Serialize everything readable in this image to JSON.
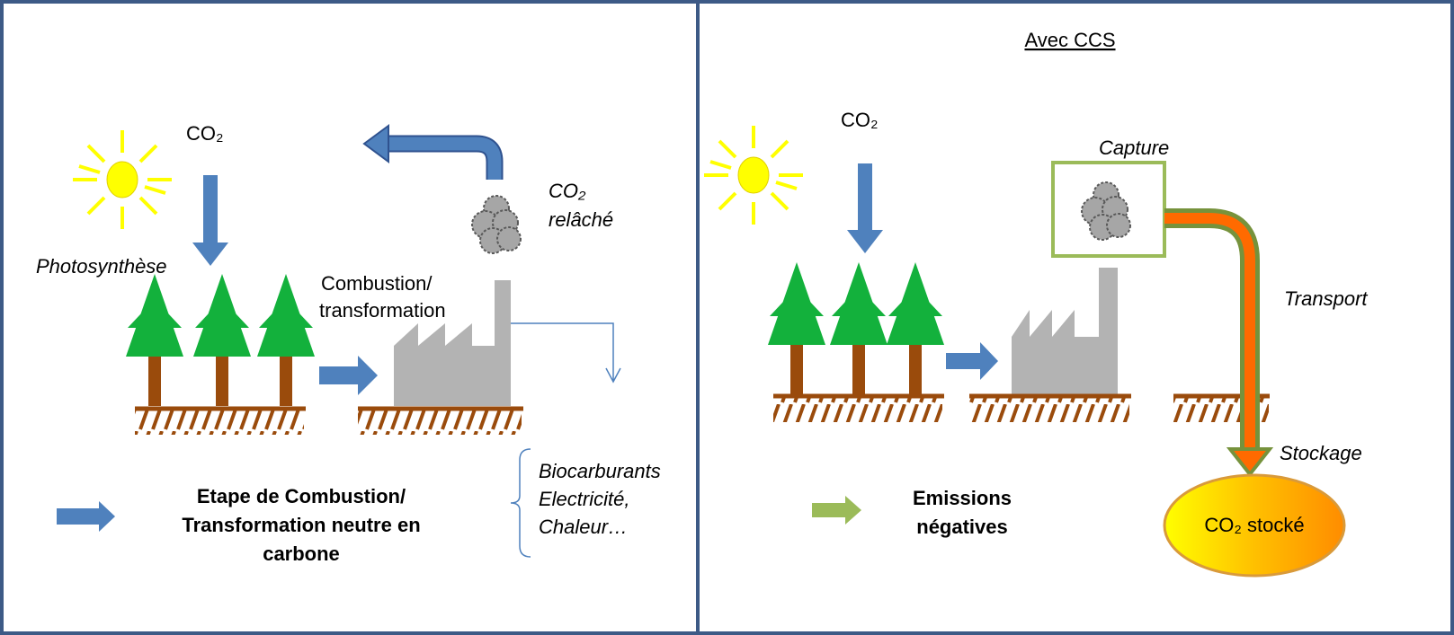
{
  "left_panel": {
    "co2_label": "CO₂",
    "photosynthesis": "Photosynthèse",
    "co2_released": [
      "CO₂",
      "relâché"
    ],
    "combustion": [
      "Combustion/",
      "transformation"
    ],
    "products": [
      "Biocarburants",
      "Electricité,",
      "Chaleur…"
    ],
    "legend": [
      "Etape de Combustion/",
      "Transformation neutre en",
      "carbone"
    ]
  },
  "right_panel": {
    "title": "Avec CCS",
    "co2_label": "CO₂",
    "capture": "Capture",
    "transport": "Transport",
    "storage": "Stockage",
    "legend": [
      "Emissions",
      "négatives"
    ],
    "stored": "CO₂ stocké"
  }
}
